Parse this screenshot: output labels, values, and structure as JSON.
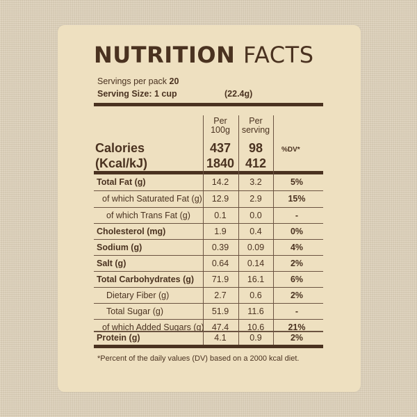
{
  "title": {
    "part1": "NUTRITION",
    "part2": "FACTS"
  },
  "servings": {
    "label": "Servings per pack",
    "value": "20"
  },
  "serving_size": {
    "label": "Serving Size: 1 cup",
    "weight": "(22.4g)"
  },
  "headers": {
    "per100_l1": "Per",
    "per100_l2": "100g",
    "perserv_l1": "Per",
    "perserv_l2": "serving",
    "dv": "%DV*"
  },
  "calories": {
    "label1": "Calories",
    "label2": "(Kcal/kJ)",
    "kcal100": "437",
    "kj100": "1840",
    "kcal_serv": "98",
    "kj_serv": "412"
  },
  "rows": [
    {
      "label": "Total Fat (g)",
      "per100": "14.2",
      "perserv": "3.2",
      "dv": "5%"
    },
    {
      "label": "of which Saturated Fat (g)",
      "per100": "12.9",
      "perserv": "2.9",
      "dv": "15%"
    },
    {
      "label": "of which Trans Fat (g)",
      "per100": "0.1",
      "perserv": "0.0",
      "dv": "-"
    },
    {
      "label": "Cholesterol (mg)",
      "per100": "1.9",
      "perserv": "0.4",
      "dv": "0%"
    },
    {
      "label": "Sodium (g)",
      "per100": "0.39",
      "perserv": "0.09",
      "dv": "4%"
    },
    {
      "label": "Salt (g)",
      "per100": "0.64",
      "perserv": "0.14",
      "dv": "2%"
    },
    {
      "label": "Total Carbohydrates (g)",
      "per100": "71.9",
      "perserv": "16.1",
      "dv": "6%"
    },
    {
      "label": "Dietary Fiber (g)",
      "per100": "2.7",
      "perserv": "0.6",
      "dv": "2%"
    },
    {
      "label": "Total Sugar (g)",
      "per100": "51.9",
      "perserv": "11.6",
      "dv": "-"
    },
    {
      "label": "of which Added Sugars (g)",
      "per100": "47.4",
      "perserv": "10.6",
      "dv": "21%"
    },
    {
      "label": "Protein (g)",
      "per100": "4.1",
      "perserv": "0.9",
      "dv": "2%"
    }
  ],
  "footnote": "*Percent of the daily values (DV) based on a 2000 kcal diet."
}
